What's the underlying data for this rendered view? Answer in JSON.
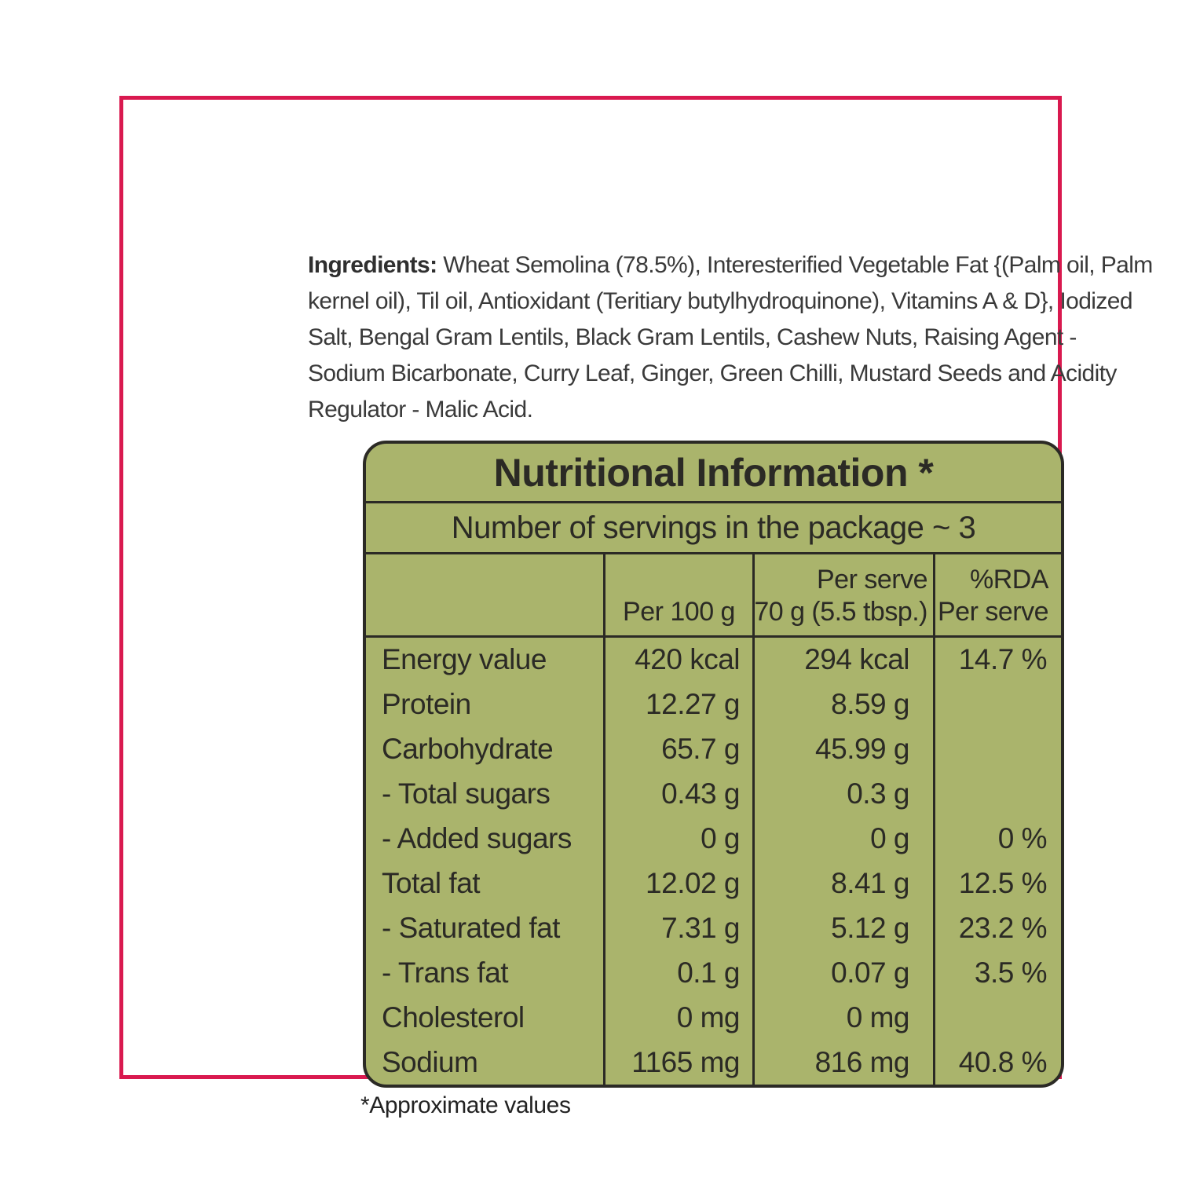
{
  "colors": {
    "frame_pink": "#d9194f",
    "panel_green": "#aab46c",
    "ink": "#2b2a25"
  },
  "ingredients": {
    "label": "Ingredients:",
    "text": " Wheat Semolina (78.5%), Interesterified Vegetable Fat {(Palm oil, Palm kernel oil), Til oil, Antioxidant (Teritiary butylhydroquinone), Vitamins A & D}, Iodized Salt, Bengal Gram Lentils, Black Gram Lentils, Cashew Nuts, Raising Agent - Sodium Bicarbonate, Curry Leaf, Ginger, Green Chilli, Mustard Seeds and Acidity Regulator - Malic Acid."
  },
  "nutrition_table": {
    "title": "Nutritional Information *",
    "servings_line": "Number of servings in the package ~ 3",
    "columns": {
      "per_100g": "Per 100 g",
      "per_serve_line1": "Per serve",
      "per_serve_line2": "70 g (5.5 tbsp.)",
      "rda_line1": "%RDA",
      "rda_line2": "Per serve"
    },
    "rows": [
      {
        "label": "Energy value",
        "per_100g": "420 kcal",
        "per_serve": "294 kcal",
        "rda": "14.7 %"
      },
      {
        "label": "Protein",
        "per_100g": "12.27 g",
        "per_serve": "8.59 g",
        "rda": ""
      },
      {
        "label": "Carbohydrate",
        "per_100g": "65.7 g",
        "per_serve": "45.99 g",
        "rda": ""
      },
      {
        "label": "- Total sugars",
        "per_100g": "0.43 g",
        "per_serve": "0.3 g",
        "rda": ""
      },
      {
        "label": "- Added sugars",
        "per_100g": "0 g",
        "per_serve": "0 g",
        "rda": "0 %"
      },
      {
        "label": "Total fat",
        "per_100g": "12.02 g",
        "per_serve": "8.41 g",
        "rda": "12.5 %"
      },
      {
        "label": "- Saturated fat",
        "per_100g": "7.31 g",
        "per_serve": "5.12 g",
        "rda": "23.2 %"
      },
      {
        "label": "- Trans fat",
        "per_100g": "0.1 g",
        "per_serve": "0.07 g",
        "rda": "3.5 %"
      },
      {
        "label": "Cholesterol",
        "per_100g": "0 mg",
        "per_serve": "0 mg",
        "rda": ""
      },
      {
        "label": "Sodium",
        "per_100g": "1165 mg",
        "per_serve": "816 mg",
        "rda": "40.8 %"
      }
    ],
    "footnote": "*Approximate values"
  }
}
